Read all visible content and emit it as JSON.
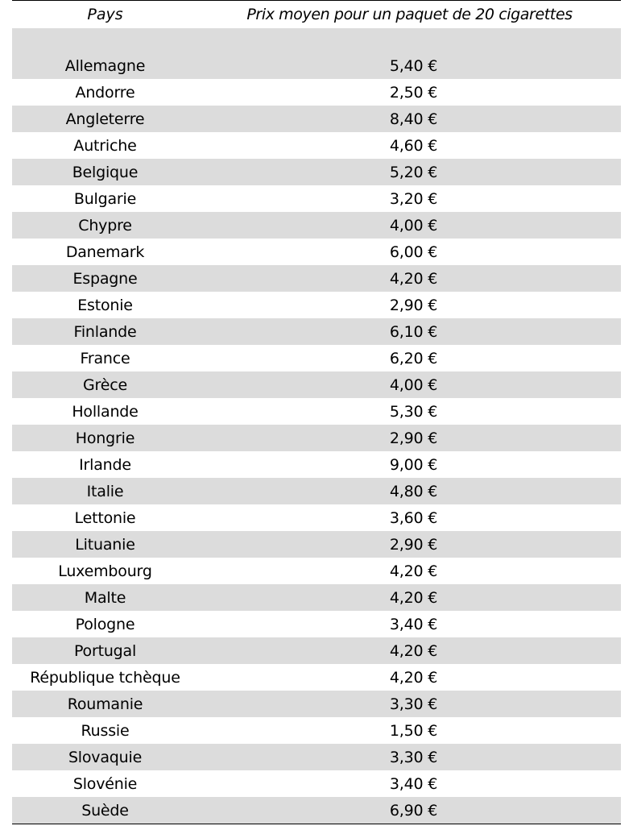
{
  "table": {
    "headers": {
      "country": "Pays",
      "price": "Prix moyen pour un paquet de 20 cigarettes"
    },
    "rows": [
      {
        "country": "Allemagne",
        "price": "5,40 €"
      },
      {
        "country": "Andorre",
        "price": "2,50 €"
      },
      {
        "country": "Angleterre",
        "price": "8,40 €"
      },
      {
        "country": "Autriche",
        "price": "4,60 €"
      },
      {
        "country": "Belgique",
        "price": "5,20 €"
      },
      {
        "country": "Bulgarie",
        "price": "3,20 €"
      },
      {
        "country": "Chypre",
        "price": "4,00 €"
      },
      {
        "country": "Danemark",
        "price": "6,00 €"
      },
      {
        "country": "Espagne",
        "price": "4,20 €"
      },
      {
        "country": "Estonie",
        "price": "2,90 €"
      },
      {
        "country": "Finlande",
        "price": "6,10 €"
      },
      {
        "country": "France",
        "price": "6,20 €"
      },
      {
        "country": "Grèce",
        "price": "4,00 €"
      },
      {
        "country": "Hollande",
        "price": "5,30 €"
      },
      {
        "country": "Hongrie",
        "price": "2,90 €"
      },
      {
        "country": "Irlande",
        "price": "9,00 €"
      },
      {
        "country": "Italie",
        "price": "4,80 €"
      },
      {
        "country": "Lettonie",
        "price": "3,60 €"
      },
      {
        "country": "Lituanie",
        "price": "2,90 €"
      },
      {
        "country": "Luxembourg",
        "price": "4,20 €"
      },
      {
        "country": "Malte",
        "price": "4,20 €"
      },
      {
        "country": "Pologne",
        "price": "3,40 €"
      },
      {
        "country": "Portugal",
        "price": "4,20 €"
      },
      {
        "country": "République tchèque",
        "price": "4,20 €"
      },
      {
        "country": "Roumanie",
        "price": "3,30 €"
      },
      {
        "country": "Russie",
        "price": "1,50 €"
      },
      {
        "country": "Slovaquie",
        "price": "3,30 €"
      },
      {
        "country": "Slovénie",
        "price": "3,40 €"
      },
      {
        "country": "Suède",
        "price": "6,90 €"
      }
    ]
  }
}
